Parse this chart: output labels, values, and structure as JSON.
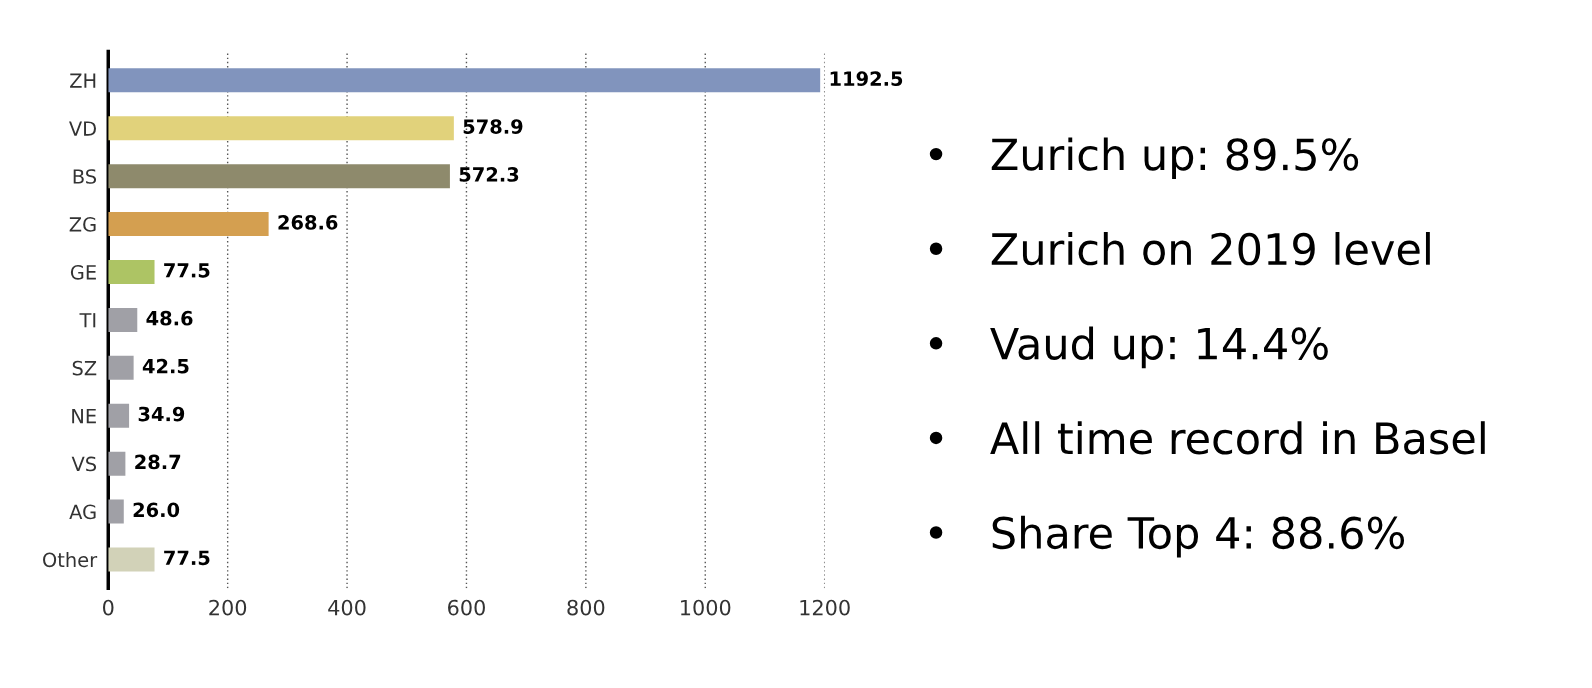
{
  "chart_data": {
    "type": "bar",
    "orientation": "horizontal",
    "categories": [
      "ZH",
      "VD",
      "BS",
      "ZG",
      "GE",
      "TI",
      "SZ",
      "NE",
      "VS",
      "AG",
      "Other"
    ],
    "values": [
      1192.5,
      578.9,
      572.3,
      268.6,
      77.5,
      48.6,
      42.5,
      34.9,
      28.7,
      26.0,
      77.5
    ],
    "colors": [
      "#8194bd",
      "#e1d27b",
      "#8e8a6c",
      "#d49f50",
      "#adc464",
      "#a0a0a6",
      "#a0a0a6",
      "#a0a0a6",
      "#a0a0a6",
      "#a0a0a6",
      "#d2d2b8"
    ],
    "value_labels": [
      "1192.5",
      "578.9",
      "572.3",
      "268.6",
      "77.5",
      "48.6",
      "42.5",
      "34.9",
      "28.7",
      "26.0",
      "77.5"
    ],
    "xlim": [
      0,
      1200
    ],
    "xticks": [
      0,
      200,
      400,
      600,
      800,
      1000,
      1200
    ],
    "grid": "x",
    "annotations": [
      "•   Zurich up: 89.5%",
      "•   Zurich on 2019 level",
      "•   Vaud up: 14.4%",
      "•   All time record in Basel",
      "•   Share Top 4: 88.6%"
    ]
  }
}
